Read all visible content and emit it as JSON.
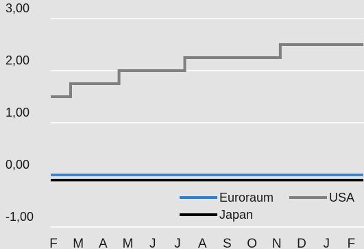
{
  "chart_data": {
    "type": "line",
    "step": true,
    "title": "",
    "xlabel": "",
    "ylabel": "",
    "categories": [
      "F",
      "M",
      "A",
      "M",
      "J",
      "J",
      "A",
      "S",
      "O",
      "N",
      "D",
      "J",
      "F"
    ],
    "y_ticks": [
      "3,00",
      "2,00",
      "1,00",
      "0,00",
      "-1,00"
    ],
    "ylim": [
      -1.0,
      3.3
    ],
    "grid": "horizontal",
    "legend_position": "bottom-right",
    "series": [
      {
        "name": "Euroraum",
        "color": "#2e7fcf",
        "x": [
          0,
          12.6
        ],
        "y": [
          0.0,
          0.0
        ]
      },
      {
        "name": "USA",
        "color": "#808080",
        "x": [
          0,
          0.8,
          0.8,
          2.75,
          2.75,
          5.4,
          5.4,
          7.35,
          7.35,
          9.25,
          9.25,
          12.6
        ],
        "y": [
          1.5,
          1.5,
          1.75,
          1.75,
          2.0,
          2.0,
          2.25,
          2.25,
          2.25,
          2.25,
          2.5,
          2.5
        ]
      },
      {
        "name": "Japan",
        "color": "#000000",
        "x": [
          0,
          12.6
        ],
        "y": [
          -0.1,
          -0.1
        ]
      }
    ]
  }
}
